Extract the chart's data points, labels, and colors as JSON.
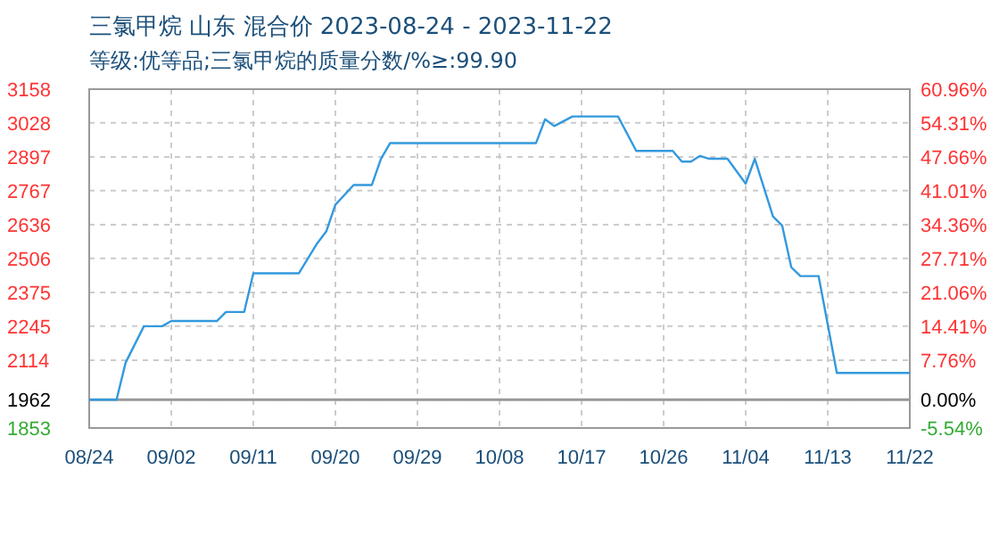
{
  "chart_data": {
    "type": "line",
    "title": "三氯甲烷 山东 混合价 2023-08-24 - 2023-11-22",
    "subtitle": "等级:优等品;三氯甲烷的质量分数/%≥:99.90",
    "grid": true,
    "marker": "none",
    "line_style": "solid",
    "xlim": [
      "2023-08-24",
      "2023-11-22"
    ],
    "xticks": [
      {
        "value": "2023-08-24",
        "label": "08/24"
      },
      {
        "value": "2023-09-02",
        "label": "09/02"
      },
      {
        "value": "2023-09-11",
        "label": "09/11"
      },
      {
        "value": "2023-09-20",
        "label": "09/20"
      },
      {
        "value": "2023-09-29",
        "label": "09/29"
      },
      {
        "value": "2023-10-08",
        "label": "10/08"
      },
      {
        "value": "2023-10-17",
        "label": "10/17"
      },
      {
        "value": "2023-10-26",
        "label": "10/26"
      },
      {
        "value": "2023-11-04",
        "label": "11/04"
      },
      {
        "value": "2023-11-13",
        "label": "11/13"
      },
      {
        "value": "2023-11-22",
        "label": "11/22"
      }
    ],
    "ylim": [
      1853,
      3158
    ],
    "yticks": [
      1853,
      1962,
      2114,
      2245,
      2375,
      2506,
      2636,
      2767,
      2897,
      3028,
      3158
    ],
    "y2lim": [
      -5.54,
      60.96
    ],
    "y2ticks": [
      {
        "value": -5.54,
        "label": "-5.54%"
      },
      {
        "value": 0,
        "label": "0.00%"
      },
      {
        "value": 7.76,
        "label": "7.76%"
      },
      {
        "value": 14.41,
        "label": "14.41%"
      },
      {
        "value": 21.06,
        "label": "21.06%"
      },
      {
        "value": 27.71,
        "label": "27.71%"
      },
      {
        "value": 34.36,
        "label": "34.36%"
      },
      {
        "value": 41.01,
        "label": "41.01%"
      },
      {
        "value": 47.66,
        "label": "47.66%"
      },
      {
        "value": 54.31,
        "label": "54.31%"
      },
      {
        "value": 60.96,
        "label": "60.96%"
      }
    ],
    "ref_lines": [
      {
        "axis": "y",
        "value": 1962,
        "color": "#999999"
      }
    ],
    "series": [
      {
        "color": "#3399dd",
        "x": [
          "2023-08-24",
          "2023-08-27",
          "2023-08-28",
          "2023-08-30",
          "2023-09-01",
          "2023-09-02",
          "2023-09-07",
          "2023-09-08",
          "2023-09-10",
          "2023-09-11",
          "2023-09-16",
          "2023-09-18",
          "2023-09-19",
          "2023-09-20",
          "2023-09-22",
          "2023-09-24",
          "2023-09-25",
          "2023-09-26",
          "2023-10-12",
          "2023-10-13",
          "2023-10-14",
          "2023-10-16",
          "2023-10-21",
          "2023-10-23",
          "2023-10-27",
          "2023-10-28",
          "2023-10-29",
          "2023-10-30",
          "2023-10-31",
          "2023-11-02",
          "2023-11-04",
          "2023-11-05",
          "2023-11-07",
          "2023-11-08",
          "2023-11-09",
          "2023-11-10",
          "2023-11-12",
          "2023-11-14",
          "2023-11-22"
        ],
        "values": [
          1962,
          1962,
          2105,
          2245,
          2245,
          2265,
          2265,
          2300,
          2300,
          2449,
          2449,
          2564,
          2610,
          2713,
          2789,
          2789,
          2890,
          2950,
          2950,
          3042,
          3016,
          3053,
          3053,
          2920,
          2920,
          2879,
          2879,
          2901,
          2890,
          2890,
          2794,
          2890,
          2667,
          2633,
          2472,
          2438,
          2438,
          2065,
          2065
        ]
      }
    ]
  }
}
